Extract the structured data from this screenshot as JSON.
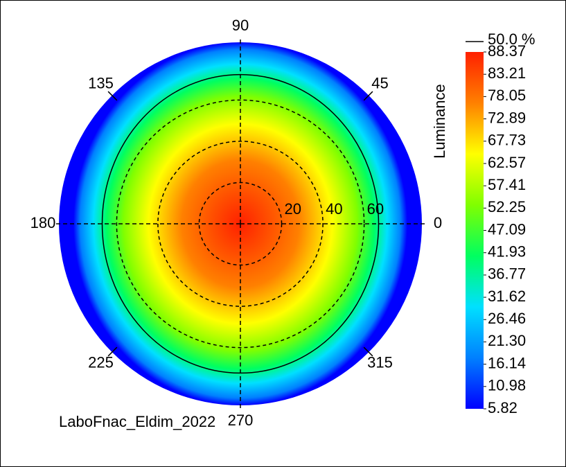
{
  "chart_data": {
    "type": "polar-heatmap",
    "quantity": "Luminance",
    "footer": "LaboFnac_Eldim_2022",
    "rlim": [
      0,
      88
    ],
    "rticks": [
      20,
      40,
      60
    ],
    "azimuth_ticks": [
      0,
      45,
      90,
      135,
      180,
      225,
      270,
      315
    ],
    "contour": {
      "label": "50.0 %",
      "radius": 67
    },
    "colorbar": {
      "clim": [
        5.82,
        88.37
      ],
      "ticks": [
        88.37,
        83.21,
        78.05,
        72.89,
        67.73,
        62.57,
        57.41,
        52.25,
        47.09,
        41.93,
        36.77,
        31.62,
        26.46,
        {
          "value": 21.3,
          "label": "21.30"
        },
        16.14,
        10.98,
        5.82
      ],
      "colors": [
        "#0000ff",
        "#0080ff",
        "#00e0ff",
        "#00ff60",
        "#80ff00",
        "#ffff00",
        "#ff8000",
        "#ff2000"
      ]
    }
  }
}
